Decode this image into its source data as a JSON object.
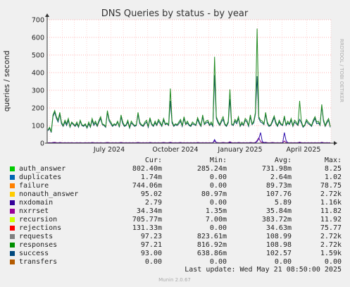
{
  "chart_data": {
    "type": "line",
    "title": "DNS Queries by status - by year",
    "ylabel": "queries / second",
    "ylim": [
      0,
      700
    ],
    "yticks": [
      "0",
      "100",
      "200",
      "300",
      "400",
      "500",
      "600",
      "700"
    ],
    "ytick_values": [
      0,
      100,
      200,
      300,
      400,
      500,
      600,
      700
    ],
    "xticks": [
      "July 2024",
      "October 2024",
      "January 2025",
      "April 2025"
    ],
    "grid": true,
    "series": [
      {
        "name": "success",
        "color": "#0b4d63",
        "values": [
          70,
          85,
          60,
          150,
          175,
          140,
          120,
          165,
          110,
          95,
          120,
          100,
          130,
          90,
          115,
          105,
          95,
          110,
          90,
          125,
          100,
          95,
          105,
          85,
          110,
          90,
          130,
          100,
          115,
          95,
          120,
          140,
          105,
          100,
          90,
          175,
          125,
          110,
          95,
          105,
          100,
          120,
          90,
          150,
          110,
          95,
          100,
          120,
          85,
          115,
          105,
          95,
          100,
          165,
          110,
          100,
          95,
          110,
          120,
          90,
          135,
          105,
          95,
          115,
          100,
          125,
          110,
          95,
          130,
          105,
          110,
          100,
          240,
          115,
          95,
          105,
          100,
          110,
          125,
          95,
          140,
          105,
          115,
          100,
          95,
          110,
          105,
          100,
          135,
          110,
          95,
          150,
          105,
          115,
          120,
          100,
          110,
          95,
          385,
          140,
          115,
          100,
          120,
          135,
          105,
          95,
          115,
          250,
          105,
          100,
          125,
          110,
          140,
          95,
          110,
          100,
          130,
          120,
          95,
          150,
          105,
          115,
          165,
          380,
          140,
          120,
          115,
          105,
          165,
          110,
          95,
          100,
          120,
          145,
          110,
          95,
          120,
          105,
          100,
          145,
          100,
          115,
          105,
          130,
          95,
          120,
          110,
          100,
          135,
          115,
          90,
          100,
          125,
          110,
          105,
          95,
          120,
          140,
          110,
          115,
          100,
          210,
          125,
          95,
          115,
          130,
          90
        ]
      },
      {
        "name": "responses",
        "color": "#228b22",
        "values": [
          75,
          90,
          65,
          160,
          185,
          150,
          130,
          175,
          120,
          100,
          130,
          110,
          140,
          95,
          120,
          110,
          100,
          120,
          95,
          130,
          105,
          100,
          110,
          90,
          120,
          95,
          140,
          110,
          125,
          100,
          130,
          150,
          110,
          105,
          95,
          185,
          135,
          120,
          100,
          110,
          105,
          125,
          95,
          160,
          120,
          100,
          105,
          130,
          90,
          125,
          110,
          100,
          105,
          175,
          120,
          105,
          100,
          120,
          130,
          95,
          145,
          110,
          100,
          125,
          105,
          135,
          120,
          100,
          140,
          110,
          115,
          105,
          310,
          125,
          100,
          110,
          105,
          120,
          135,
          100,
          150,
          110,
          125,
          105,
          100,
          120,
          110,
          105,
          145,
          120,
          100,
          160,
          110,
          125,
          130,
          105,
          120,
          100,
          490,
          150,
          125,
          105,
          130,
          150,
          110,
          100,
          125,
          305,
          110,
          105,
          135,
          120,
          150,
          100,
          120,
          105,
          140,
          130,
          100,
          160,
          110,
          125,
          175,
          650,
          150,
          130,
          125,
          110,
          175,
          120,
          100,
          105,
          130,
          155,
          120,
          100,
          130,
          110,
          105,
          155,
          105,
          125,
          110,
          140,
          100,
          130,
          120,
          105,
          240,
          125,
          95,
          105,
          135,
          120,
          110,
          100,
          130,
          150,
          120,
          125,
          105,
          220,
          135,
          100,
          125,
          140,
          95
        ]
      },
      {
        "name": "nxrrset",
        "color": "#880a88",
        "values": [
          2,
          3,
          2,
          4,
          5,
          3,
          2,
          4,
          3,
          2,
          3,
          2,
          3,
          2,
          3,
          2,
          2,
          3,
          2,
          3,
          2,
          2,
          3,
          2,
          3,
          2,
          4,
          3,
          2,
          3,
          2,
          3,
          2,
          2,
          3,
          4,
          3,
          2,
          3,
          2,
          3,
          2,
          3,
          4,
          3,
          2,
          3,
          2,
          3,
          2,
          3,
          2,
          3,
          4,
          3,
          2,
          3,
          2,
          3,
          2,
          4,
          3,
          2,
          3,
          2,
          3,
          2,
          3,
          4,
          3,
          2,
          3,
          5,
          3,
          2,
          3,
          2,
          3,
          4,
          2,
          3,
          2,
          3,
          2,
          3,
          2,
          3,
          2,
          4,
          3,
          2,
          3,
          2,
          3,
          2,
          3,
          2,
          3,
          12,
          4,
          3,
          2,
          3,
          4,
          3,
          2,
          3,
          8,
          3,
          2,
          3,
          2,
          4,
          3,
          2,
          3,
          2,
          3,
          2,
          4,
          3,
          2,
          4,
          15,
          30,
          8,
          4,
          3,
          5,
          3,
          2,
          3,
          4,
          3,
          2,
          3,
          2,
          3,
          2,
          12,
          4,
          3,
          2,
          3,
          2,
          3,
          2,
          3,
          6,
          3,
          2,
          3,
          2,
          3,
          2,
          3,
          2,
          3,
          2,
          3,
          2,
          5,
          3,
          2,
          3,
          2,
          3
        ]
      },
      {
        "name": "nxdomain",
        "color": "#2c0dab",
        "values": [
          1,
          1,
          1,
          2,
          2,
          1,
          1,
          2,
          1,
          1,
          1,
          1,
          1,
          1,
          1,
          1,
          1,
          1,
          1,
          1,
          1,
          1,
          1,
          1,
          1,
          1,
          2,
          1,
          1,
          1,
          1,
          1,
          1,
          1,
          1,
          2,
          1,
          1,
          1,
          1,
          1,
          1,
          1,
          2,
          1,
          1,
          1,
          1,
          1,
          1,
          1,
          1,
          1,
          2,
          1,
          1,
          1,
          1,
          1,
          1,
          2,
          1,
          1,
          1,
          1,
          1,
          1,
          1,
          2,
          1,
          1,
          1,
          3,
          1,
          1,
          1,
          1,
          1,
          2,
          1,
          1,
          1,
          1,
          1,
          1,
          1,
          1,
          1,
          2,
          1,
          1,
          1,
          1,
          1,
          1,
          1,
          1,
          1,
          20,
          2,
          1,
          1,
          1,
          2,
          1,
          1,
          1,
          5,
          1,
          1,
          1,
          1,
          2,
          1,
          1,
          1,
          1,
          1,
          1,
          2,
          1,
          1,
          2,
          10,
          25,
          60,
          10,
          3,
          3,
          1,
          1,
          1,
          2,
          1,
          1,
          1,
          1,
          1,
          1,
          60,
          15,
          2,
          1,
          1,
          1,
          1,
          1,
          1,
          3,
          1,
          1,
          1,
          1,
          1,
          1,
          1,
          1,
          1,
          1,
          1,
          1,
          3,
          1,
          1,
          1,
          1,
          1
        ]
      }
    ]
  },
  "side_label": "RRDTOOL / TOBI OETIKER",
  "legend": {
    "headers": {
      "cur": "Cur:",
      "min": "Min:",
      "avg": "Avg:",
      "max": "Max:"
    },
    "rows": [
      {
        "name": "auth_answer",
        "color": "#00cc00",
        "cur": "802.40m",
        "min": "285.24m",
        "avg": "731.98m",
        "max": "8.25"
      },
      {
        "name": "duplicates",
        "color": "#0066b3",
        "cur": "1.74m",
        "min": "0.00",
        "avg": "2.64m",
        "max": "1.02"
      },
      {
        "name": "failure",
        "color": "#ff8000",
        "cur": "744.06m",
        "min": "0.00",
        "avg": "89.73m",
        "max": "78.75"
      },
      {
        "name": "nonauth_answer",
        "color": "#ffcc00",
        "cur": "95.02",
        "min": "80.97m",
        "avg": "107.76",
        "max": "2.72k"
      },
      {
        "name": "nxdomain",
        "color": "#330099",
        "cur": "2.79",
        "min": "0.00",
        "avg": "5.89",
        "max": "1.16k"
      },
      {
        "name": "nxrrset",
        "color": "#990099",
        "cur": "34.34m",
        "min": "1.35m",
        "avg": "35.84m",
        "max": "11.82"
      },
      {
        "name": "recursion",
        "color": "#ccff00",
        "cur": "705.77m",
        "min": "7.00m",
        "avg": "383.72m",
        "max": "11.92"
      },
      {
        "name": "rejections",
        "color": "#ff0000",
        "cur": "131.33m",
        "min": "0.00",
        "avg": "34.63m",
        "max": "75.77"
      },
      {
        "name": "requests",
        "color": "#808080",
        "cur": "97.23",
        "min": "823.61m",
        "avg": "108.99",
        "max": "2.72k"
      },
      {
        "name": "responses",
        "color": "#008f00",
        "cur": "97.21",
        "min": "816.92m",
        "avg": "108.98",
        "max": "2.72k"
      },
      {
        "name": "success",
        "color": "#00487d",
        "cur": "93.00",
        "min": "638.86m",
        "avg": "102.57",
        "max": "1.59k"
      },
      {
        "name": "transfers",
        "color": "#b35a00",
        "cur": "0.00",
        "min": "0.00",
        "avg": "0.00",
        "max": "0.00"
      }
    ]
  },
  "last_update": "Last update: Wed May 21 08:50:00 2025",
  "footer": "Munin 2.0.67"
}
